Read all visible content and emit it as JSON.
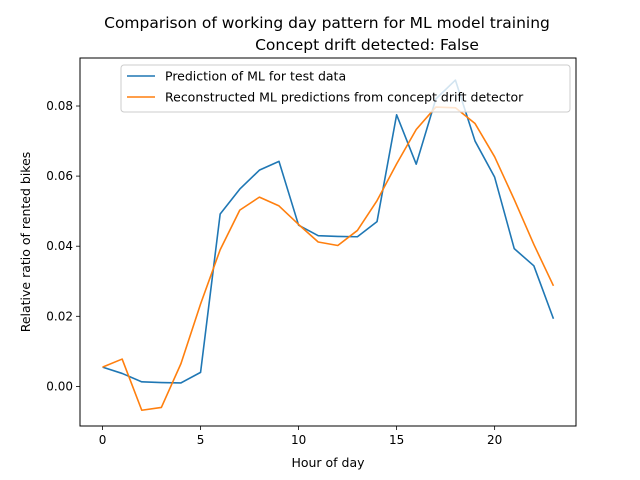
{
  "chart_data": {
    "type": "line",
    "title_line1": "Comparison of working day pattern for ML model training",
    "title_line2": "Concept drift detected: False",
    "xlabel": "Hour of day",
    "ylabel": "Relative ratio of rented bikes",
    "xlim": [
      -1.15,
      24.15
    ],
    "ylim": [
      -0.0113,
      0.0937
    ],
    "xticks": [
      0,
      5,
      10,
      15,
      20
    ],
    "xtick_labels": [
      "0",
      "5",
      "10",
      "15",
      "20"
    ],
    "yticks": [
      0.0,
      0.02,
      0.04,
      0.06,
      0.08
    ],
    "ytick_labels": [
      "0.00",
      "0.02",
      "0.04",
      "0.06",
      "0.08"
    ],
    "grid": false,
    "legend_position": "top-right",
    "x": [
      0,
      1,
      2,
      3,
      4,
      5,
      6,
      7,
      8,
      9,
      10,
      11,
      12,
      13,
      14,
      15,
      16,
      17,
      18,
      19,
      20,
      21,
      22,
      23
    ],
    "series": [
      {
        "name": "Prediction of ML for test data",
        "color": "#1f77b4",
        "values": [
          0.0055,
          0.0037,
          0.0013,
          0.0011,
          0.001,
          0.004,
          0.0492,
          0.0563,
          0.0617,
          0.0642,
          0.046,
          0.043,
          0.0428,
          0.0427,
          0.047,
          0.0775,
          0.0634,
          0.082,
          0.0874,
          0.07,
          0.0597,
          0.0393,
          0.0344,
          0.0193
        ]
      },
      {
        "name": "Reconstructed ML predictions from concept drift detector",
        "color": "#ff7f0e",
        "values": [
          0.0055,
          0.0078,
          -0.0068,
          -0.006,
          0.0065,
          0.0235,
          0.039,
          0.0503,
          0.054,
          0.0515,
          0.0462,
          0.0412,
          0.0402,
          0.0445,
          0.053,
          0.0635,
          0.0733,
          0.0797,
          0.0795,
          0.075,
          0.0655,
          0.0533,
          0.0405,
          0.0287
        ]
      }
    ]
  }
}
